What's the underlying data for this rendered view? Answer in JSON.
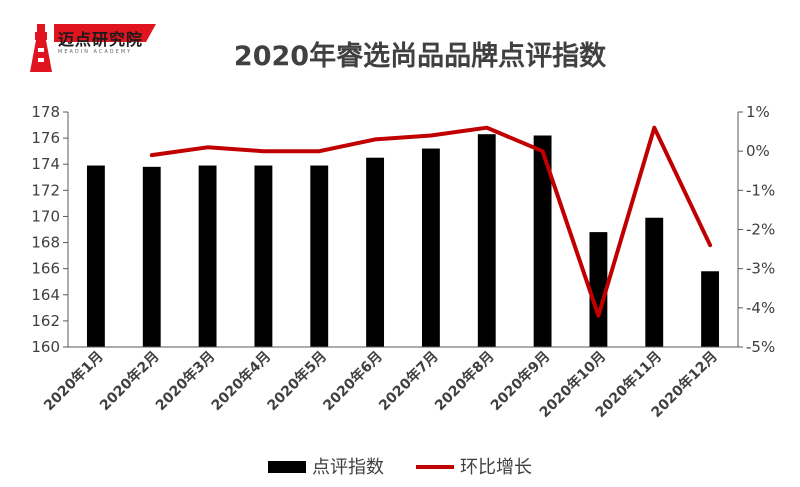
{
  "logo": {
    "text": "迈点研究院",
    "subtitle": "MEADIN ACADEMY",
    "accent_color": "#e0141e"
  },
  "chart_data": {
    "type": "bar+line",
    "title": "2020年睿选尚品品牌点评指数",
    "categories": [
      "2020年1月",
      "2020年2月",
      "2020年3月",
      "2020年4月",
      "2020年5月",
      "2020年6月",
      "2020年7月",
      "2020年8月",
      "2020年9月",
      "2020年10月",
      "2020年11月",
      "2020年12月"
    ],
    "series": [
      {
        "name": "点评指数",
        "type": "bar",
        "axis": "left",
        "color": "#000000",
        "values": [
          173.9,
          173.8,
          173.9,
          173.9,
          173.9,
          174.5,
          175.2,
          176.3,
          176.2,
          168.8,
          169.9,
          165.8
        ]
      },
      {
        "name": "环比增长",
        "type": "line",
        "axis": "right",
        "color": "#c00000",
        "values": [
          null,
          -0.1,
          0.1,
          0.0,
          0.0,
          0.3,
          0.4,
          0.6,
          0.0,
          -4.2,
          0.6,
          -2.4
        ]
      }
    ],
    "y_left": {
      "min": 160,
      "max": 178,
      "step": 2
    },
    "y_right": {
      "min": -5,
      "max": 1,
      "step": 1,
      "unit": "%"
    },
    "legend_position": "bottom"
  }
}
